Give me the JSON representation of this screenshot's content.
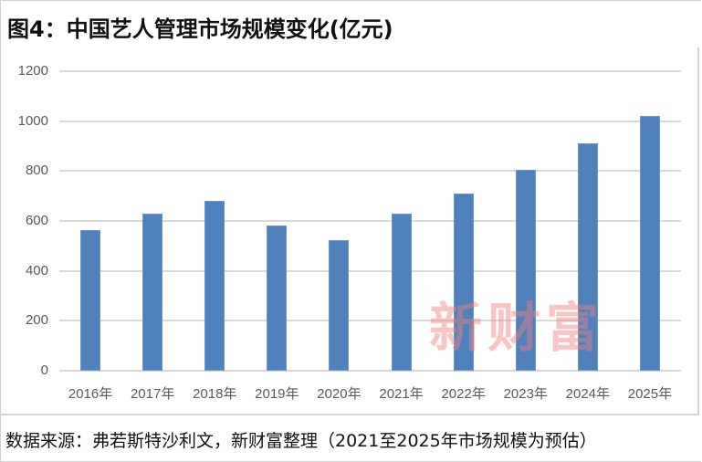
{
  "title": "图4：中国艺人管理市场规模变化(亿元)",
  "watermark": "新财富",
  "source": "数据来源：弗若斯特沙利文，新财富整理（2021至2025年市场规模为预估）",
  "colors": {
    "bar": "#4f81bd",
    "gridline": "#d9d9d9",
    "tick_text": "#595959",
    "watermark": "#f08080"
  },
  "y_ticks": [
    "0",
    "200",
    "400",
    "600",
    "800",
    "1000",
    "1200"
  ],
  "x_ticks": [
    "2016年",
    "2017年",
    "2018年",
    "2019年",
    "2020年",
    "2021年",
    "2022年",
    "2023年",
    "2024年",
    "2025年"
  ],
  "chart_data": {
    "type": "bar",
    "title": "图4：中国艺人管理市场规模变化(亿元)",
    "categories": [
      "2016年",
      "2017年",
      "2018年",
      "2019年",
      "2020年",
      "2021年",
      "2022年",
      "2023年",
      "2024年",
      "2025年"
    ],
    "values": [
      565,
      630,
      680,
      580,
      525,
      630,
      710,
      805,
      910,
      1020
    ],
    "xlabel": "",
    "ylabel": "亿元",
    "ylim": [
      0,
      1200
    ],
    "yticks": [
      0,
      200,
      400,
      600,
      800,
      1000,
      1200
    ],
    "grid": true,
    "legend": null,
    "annotations": [
      "2021至2025年市场规模为预估"
    ]
  }
}
